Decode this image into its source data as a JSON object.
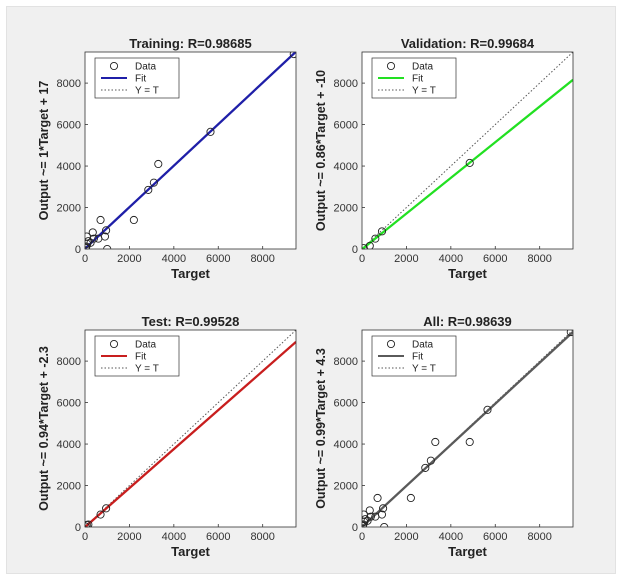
{
  "chart_data": [
    {
      "type": "scatter",
      "title": "Training: R=0.98685",
      "xlabel": "Target",
      "ylabel": "Output ~= 1*Target + 17",
      "xlim": [
        0,
        9500
      ],
      "ylim": [
        0,
        9500
      ],
      "xticks": [
        0,
        2000,
        4000,
        6000,
        8000
      ],
      "yticks": [
        0,
        2000,
        4000,
        6000,
        8000
      ],
      "tick_labels": [
        "0",
        "2000",
        "4000",
        "6000",
        "8000"
      ],
      "fit": {
        "slope": 1.0,
        "intercept": 17,
        "color": "#1f1fa8"
      },
      "legend": {
        "placement": "top-left",
        "items": [
          "Data",
          "Fit",
          "Y = T"
        ]
      },
      "points": [
        {
          "x": 30,
          "y": 50
        },
        {
          "x": 60,
          "y": 120
        },
        {
          "x": 100,
          "y": 250
        },
        {
          "x": 150,
          "y": 380
        },
        {
          "x": 80,
          "y": 600
        },
        {
          "x": 250,
          "y": 300
        },
        {
          "x": 350,
          "y": 800
        },
        {
          "x": 400,
          "y": 500
        },
        {
          "x": 600,
          "y": 500
        },
        {
          "x": 700,
          "y": 1400
        },
        {
          "x": 900,
          "y": 600
        },
        {
          "x": 950,
          "y": 900
        },
        {
          "x": 1000,
          "y": 0
        },
        {
          "x": 2200,
          "y": 1400
        },
        {
          "x": 2850,
          "y": 2850
        },
        {
          "x": 3100,
          "y": 3200
        },
        {
          "x": 3300,
          "y": 4100
        },
        {
          "x": 5650,
          "y": 5650
        },
        {
          "x": 9400,
          "y": 9400
        }
      ]
    },
    {
      "type": "scatter",
      "title": "Validation: R=0.99684",
      "xlabel": "Target",
      "ylabel": "Output ~= 0.86*Target + -10",
      "xlim": [
        0,
        9500
      ],
      "ylim": [
        0,
        9500
      ],
      "xticks": [
        0,
        2000,
        4000,
        6000,
        8000
      ],
      "yticks": [
        0,
        2000,
        4000,
        6000,
        8000
      ],
      "tick_labels": [
        "0",
        "2000",
        "4000",
        "6000",
        "8000"
      ],
      "fit": {
        "slope": 0.86,
        "intercept": -10,
        "color": "#22e022"
      },
      "legend": {
        "placement": "top-left",
        "items": [
          "Data",
          "Fit",
          "Y = T"
        ]
      },
      "points": [
        {
          "x": 80,
          "y": 40
        },
        {
          "x": 350,
          "y": 150
        },
        {
          "x": 600,
          "y": 500
        },
        {
          "x": 900,
          "y": 850
        },
        {
          "x": 4850,
          "y": 4150
        }
      ]
    },
    {
      "type": "scatter",
      "title": "Test: R=0.99528",
      "xlabel": "Target",
      "ylabel": "Output ~= 0.94*Target + -2.3",
      "xlim": [
        0,
        9500
      ],
      "ylim": [
        0,
        9500
      ],
      "xticks": [
        0,
        2000,
        4000,
        6000,
        8000
      ],
      "yticks": [
        0,
        2000,
        4000,
        6000,
        8000
      ],
      "tick_labels": [
        "0",
        "2000",
        "4000",
        "6000",
        "8000"
      ],
      "fit": {
        "slope": 0.94,
        "intercept": -2.3,
        "color": "#c81e1e"
      },
      "legend": {
        "placement": "top-left",
        "items": [
          "Data",
          "Fit",
          "Y = T"
        ]
      },
      "points": [
        {
          "x": 30,
          "y": 20
        },
        {
          "x": 80,
          "y": 100
        },
        {
          "x": 150,
          "y": 120
        },
        {
          "x": 700,
          "y": 600
        },
        {
          "x": 950,
          "y": 900
        }
      ]
    },
    {
      "type": "scatter",
      "title": "All: R=0.98639",
      "xlabel": "Target",
      "ylabel": "Output ~= 0.99*Target + 4.3",
      "xlim": [
        0,
        9500
      ],
      "ylim": [
        0,
        9500
      ],
      "xticks": [
        0,
        2000,
        4000,
        6000,
        8000
      ],
      "yticks": [
        0,
        2000,
        4000,
        6000,
        8000
      ],
      "tick_labels": [
        "0",
        "2000",
        "4000",
        "6000",
        "8000"
      ],
      "fit": {
        "slope": 0.99,
        "intercept": 4.3,
        "color": "#5a5a5a"
      },
      "legend": {
        "placement": "top-left",
        "items": [
          "Data",
          "Fit",
          "Y = T"
        ]
      },
      "points": [
        {
          "x": 30,
          "y": 50
        },
        {
          "x": 60,
          "y": 120
        },
        {
          "x": 100,
          "y": 250
        },
        {
          "x": 150,
          "y": 380
        },
        {
          "x": 80,
          "y": 600
        },
        {
          "x": 250,
          "y": 300
        },
        {
          "x": 350,
          "y": 800
        },
        {
          "x": 400,
          "y": 500
        },
        {
          "x": 600,
          "y": 500
        },
        {
          "x": 700,
          "y": 1400
        },
        {
          "x": 900,
          "y": 600
        },
        {
          "x": 950,
          "y": 900
        },
        {
          "x": 1000,
          "y": 0
        },
        {
          "x": 2200,
          "y": 1400
        },
        {
          "x": 2850,
          "y": 2850
        },
        {
          "x": 3100,
          "y": 3200
        },
        {
          "x": 3300,
          "y": 4100
        },
        {
          "x": 4850,
          "y": 4100
        },
        {
          "x": 5650,
          "y": 5650
        },
        {
          "x": 9400,
          "y": 9400
        }
      ]
    }
  ]
}
